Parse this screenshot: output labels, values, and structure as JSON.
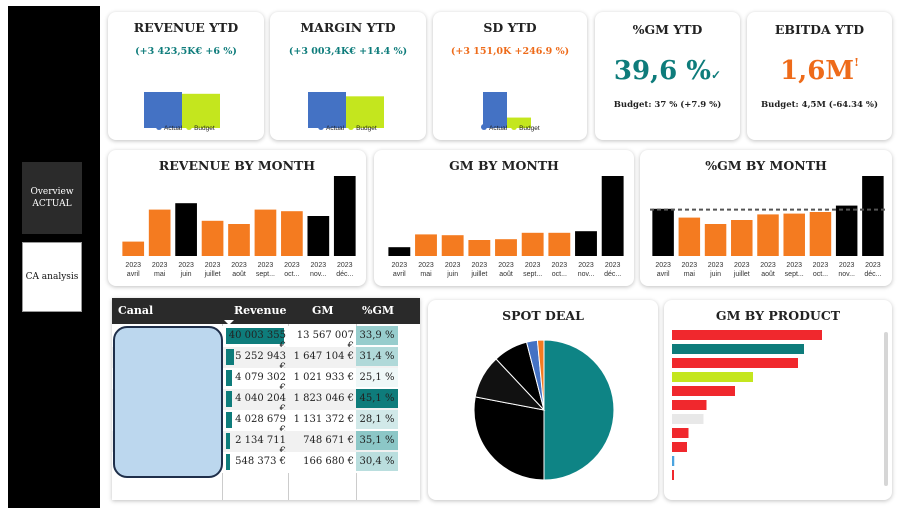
{
  "nav": {
    "overview_label": "Overview ACTUAL",
    "ca_label": "CA analysis"
  },
  "kpis": {
    "revenue": {
      "title": "REVENUE YTD",
      "delta": "(+3 423,5K€ +6 %)",
      "legend_actual": "Actual",
      "legend_budget": "Budget"
    },
    "margin": {
      "title": "MARGIN YTD",
      "delta": "(+3 003,4K€ +14.4 %)",
      "legend_actual": "Actual",
      "legend_budget": "Budget"
    },
    "sd": {
      "title": "SD YTD",
      "delta": "(+3 151,0K +246.9 %)",
      "legend_actual": "Actual",
      "legend_budget": "Budget"
    },
    "gm_pct": {
      "title": "%GM YTD",
      "value": "39,6 %",
      "indicator": "✓",
      "budget": "Budget: 37 % (+7.9 %)"
    },
    "ebitda": {
      "title": "EBITDA YTD",
      "value": "1,6M",
      "indicator": "!",
      "budget": "Budget: 4,5M (-64.34 %)"
    }
  },
  "colors": {
    "actual": "#4472c4",
    "budget": "#c4e61e",
    "orange": "#f47b20",
    "black": "#000000",
    "teal": "#0e7c7b"
  },
  "chart_data": [
    {
      "type": "bar",
      "title": "REVENUE YTD",
      "categories": [
        "Actual",
        "Budget"
      ],
      "values": [
        100,
        95
      ],
      "ylim": [
        0,
        100
      ]
    },
    {
      "type": "bar",
      "title": "MARGIN YTD",
      "categories": [
        "Actual",
        "Budget"
      ],
      "values": [
        100,
        88
      ],
      "ylim": [
        0,
        100
      ]
    },
    {
      "type": "bar",
      "title": "SD YTD",
      "categories": [
        "Actual",
        "Budget"
      ],
      "values": [
        100,
        29
      ],
      "ylim": [
        0,
        100
      ]
    },
    {
      "type": "bar",
      "title": "REVENUE BY MONTH",
      "x_year": "2023",
      "categories": [
        "avril",
        "mai",
        "juin",
        "juillet",
        "août",
        "sept...",
        "oct...",
        "nov...",
        "déc..."
      ],
      "values": [
        18,
        58,
        66,
        44,
        40,
        58,
        56,
        50,
        100
      ],
      "bar_colors": [
        "orange",
        "orange",
        "black",
        "orange",
        "orange",
        "orange",
        "orange",
        "black",
        "black"
      ],
      "ylim": [
        0,
        100
      ]
    },
    {
      "type": "bar",
      "title": "GM BY MONTH",
      "x_year": "2023",
      "categories": [
        "avril",
        "mai",
        "juin",
        "juillet",
        "août",
        "sept...",
        "oct...",
        "nov...",
        "déc..."
      ],
      "values": [
        11,
        27,
        26,
        20,
        21,
        29,
        29,
        31,
        100
      ],
      "bar_colors": [
        "black",
        "orange",
        "orange",
        "orange",
        "orange",
        "orange",
        "orange",
        "black",
        "black"
      ],
      "ylim": [
        0,
        100
      ]
    },
    {
      "type": "bar",
      "title": "%GM BY MONTH",
      "x_year": "2023",
      "categories": [
        "avril",
        "mai",
        "juin",
        "juillet",
        "août",
        "sept...",
        "oct...",
        "nov...",
        "déc..."
      ],
      "values": [
        59,
        48,
        40,
        45,
        52,
        53,
        55,
        63,
        100
      ],
      "bar_colors": [
        "black",
        "orange",
        "orange",
        "orange",
        "orange",
        "orange",
        "orange",
        "black",
        "black"
      ],
      "reference_line": 58,
      "ylim": [
        0,
        100
      ]
    },
    {
      "type": "table",
      "columns": [
        "Canal",
        "Revenue",
        "GM",
        "%GM"
      ],
      "rows": [
        {
          "revenue": "40 003 355 €",
          "gm": "13 567 007 €",
          "gm_pct": "33,9 %",
          "rev_share": 100,
          "pct_val": 33.9
        },
        {
          "revenue": "5 252 943 €",
          "gm": "1 647 104 €",
          "gm_pct": "31,4 %",
          "rev_share": 13,
          "pct_val": 31.4
        },
        {
          "revenue": "4 079 302 €",
          "gm": "1 021 933 €",
          "gm_pct": "25,1 %",
          "rev_share": 10,
          "pct_val": 25.1
        },
        {
          "revenue": "4 040 204 €",
          "gm": "1 823 046 €",
          "gm_pct": "45,1 %",
          "rev_share": 10,
          "pct_val": 45.1
        },
        {
          "revenue": "4 028 679 €",
          "gm": "1 131 372 €",
          "gm_pct": "28,1 %",
          "rev_share": 10,
          "pct_val": 28.1
        },
        {
          "revenue": "2 134 711 €",
          "gm": "748 671 €",
          "gm_pct": "35,1 %",
          "rev_share": 5,
          "pct_val": 35.1
        },
        {
          "revenue": "548 373 €",
          "gm": "166 680 €",
          "gm_pct": "30,4 %",
          "rev_share": 1,
          "pct_val": 30.4
        }
      ]
    },
    {
      "type": "pie",
      "title": "SPOT DEAL",
      "values": [
        50,
        28,
        10,
        8,
        2.5,
        1.5
      ],
      "slice_colors": [
        "#0e8485",
        "#000000",
        "#111111",
        "#000000",
        "#4472c4",
        "#f47b20"
      ]
    },
    {
      "type": "bar",
      "orientation": "horizontal",
      "title": "GM BY PRODUCT",
      "values": [
        100,
        88,
        84,
        54,
        42,
        23,
        21,
        11,
        10,
        1.5,
        1
      ],
      "bar_colors": [
        "#f0282d",
        "#0e7c7b",
        "#f0282d",
        "#c4e61e",
        "#f0282d",
        "#f0282d",
        "#e8e8e8",
        "#f0282d",
        "#f0282d",
        "#4aa3df",
        "#f0282d"
      ],
      "xlim": [
        0,
        100
      ]
    }
  ],
  "titles": {
    "rev_month": "REVENUE BY MONTH",
    "gm_month": "GM BY MONTH",
    "pctgm_month": "%GM BY MONTH",
    "spot": "SPOT DEAL",
    "product": "GM BY PRODUCT"
  },
  "table_head": {
    "canal": "Canal",
    "revenue": "Revenue",
    "gm": "GM",
    "pct": "%GM"
  }
}
